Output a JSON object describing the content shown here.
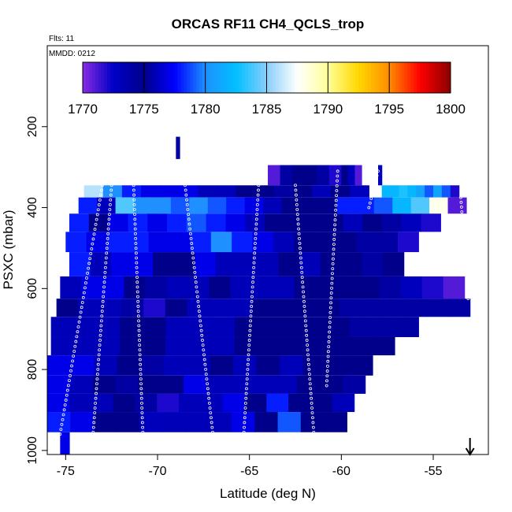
{
  "chart_data": {
    "type": "heatmap",
    "title": "ORCAS RF11 CH4_QCLS_trop",
    "flights_note": "Flts: 11",
    "date_note": "MMDD: 0212",
    "xlabel": "Latitude (deg N)",
    "ylabel": "PSXC (mbar)",
    "xlim": [
      -76,
      -52
    ],
    "ylim": [
      1010,
      0
    ],
    "x_ticks": [
      -75,
      -70,
      -65,
      -60,
      -55
    ],
    "x_tick_labels": [
      "-75",
      "-70",
      "-65",
      "-60",
      "-55"
    ],
    "y_ticks": [
      200,
      400,
      600,
      800,
      1000
    ],
    "y_tick_labels": [
      "200",
      "400",
      "600",
      "800",
      "1000"
    ],
    "colorbar": {
      "min": 1770,
      "max": 1800,
      "ticks": [
        1770,
        1775,
        1780,
        1785,
        1790,
        1795,
        1800
      ],
      "tick_labels": [
        "1770",
        "1775",
        "1780",
        "1785",
        "1790",
        "1795",
        "1800"
      ],
      "colors": [
        "#8a2be2",
        "#0000c8",
        "#00008b",
        "#0000ff",
        "#1e90ff",
        "#00bfff",
        "#87cefa",
        "#ffffff",
        "#ffff99",
        "#ffd700",
        "#ff8c00",
        "#ff0000",
        "#8b0000"
      ]
    },
    "arrow_latitude": -53,
    "bands": [
      {
        "p_top": 295,
        "p_bot": 345,
        "x0": -64.0,
        "x1": -60.0,
        "values": [
          1771,
          1774,
          1775,
          1775,
          1774,
          1772
        ]
      },
      {
        "p_top": 295,
        "p_bot": 345,
        "x0": -60.0,
        "x1": -58.9,
        "values": [
          1775,
          1773,
          1771
        ]
      },
      {
        "p_top": 295,
        "p_bot": 345,
        "x0": -58.0,
        "x1": -57.8,
        "values": [
          1773
        ]
      },
      {
        "p_top": 345,
        "p_bot": 375,
        "x0": -74.0,
        "x1": -58.5,
        "values": [
          1786,
          1780,
          1778,
          1777,
          1777,
          1777,
          1776,
          1776,
          1775,
          1775,
          1774,
          1775,
          1776,
          1775,
          1773
        ]
      },
      {
        "p_top": 345,
        "p_bot": 375,
        "x0": -57.8,
        "x1": -53.6,
        "values": [
          1782,
          1782,
          1783,
          1782,
          1781,
          1779,
          1781,
          1779,
          1772
        ]
      },
      {
        "p_top": 375,
        "p_bot": 415,
        "x0": -74.3,
        "x1": -53.2,
        "values": [
          1778,
          1773,
          1784,
          1780,
          1780,
          1779,
          1780,
          1779,
          1778,
          1777,
          1776,
          1775,
          1775,
          1775,
          1778,
          1778,
          1779,
          1782,
          1784,
          1788,
          1771
        ]
      },
      {
        "p_top": 415,
        "p_bot": 460,
        "x0": -74.8,
        "x1": -54.6,
        "values": [
          1778,
          1775,
          1777,
          1778,
          1777,
          1778,
          1779,
          1778,
          1777,
          1776,
          1775,
          1775,
          1775,
          1775,
          1776,
          1775,
          1774,
          1773,
          1772
        ]
      },
      {
        "p_top": 460,
        "p_bot": 510,
        "x0": -75.0,
        "x1": -55.8,
        "values": [
          1778,
          1777,
          1778,
          1778,
          1777,
          1777,
          1778,
          1780,
          1778,
          1777,
          1776,
          1775,
          1775,
          1775,
          1774,
          1774,
          1772
        ]
      },
      {
        "p_top": 510,
        "p_bot": 570,
        "x0": -74.8,
        "x1": -56.6,
        "values": [
          1778,
          1776,
          1777,
          1777,
          1775,
          1775,
          1777,
          1776,
          1776,
          1776,
          1775,
          1776,
          1775,
          1775,
          1774,
          1775
        ]
      },
      {
        "p_top": 570,
        "p_bot": 625,
        "x0": -75.3,
        "x1": -53.3,
        "values": [
          1776,
          1777,
          1777,
          1775,
          1774,
          1776,
          1776,
          1775,
          1776,
          1776,
          1776,
          1775,
          1775,
          1775,
          1775,
          1774,
          1773,
          1772,
          1771
        ]
      },
      {
        "p_top": 625,
        "p_bot": 670,
        "x0": -75.5,
        "x1": -53.0,
        "values": [
          1775,
          1776,
          1776,
          1774,
          1772,
          1775,
          1776,
          1776,
          1776,
          1775,
          1775,
          1775,
          1775,
          1774,
          1774,
          1774,
          1774,
          1774,
          1774
        ]
      },
      {
        "p_top": 670,
        "p_bot": 720,
        "x0": -75.8,
        "x1": -55.8,
        "values": [
          1776,
          1776,
          1776,
          1775,
          1775,
          1776,
          1776,
          1776,
          1775,
          1775,
          1775,
          1775,
          1775,
          1774,
          1774,
          1774
        ]
      },
      {
        "p_top": 720,
        "p_bot": 765,
        "x0": -75.8,
        "x1": -57.1,
        "values": [
          1776,
          1776,
          1776,
          1775,
          1775,
          1776,
          1776,
          1776,
          1775,
          1775,
          1775,
          1775,
          1775,
          1775,
          1775
        ]
      },
      {
        "p_top": 765,
        "p_bot": 815,
        "x0": -76.0,
        "x1": -58.3,
        "values": [
          1777,
          1777,
          1776,
          1775,
          1774,
          1776,
          1776,
          1775,
          1776,
          1775,
          1776,
          1775,
          1775,
          1775
        ]
      },
      {
        "p_top": 815,
        "p_bot": 860,
        "x0": -76.0,
        "x1": -58.7,
        "values": [
          1777,
          1776,
          1775,
          1774,
          1775,
          1775,
          1777,
          1776,
          1776,
          1776,
          1776,
          1775,
          1775,
          1774
        ]
      },
      {
        "p_top": 860,
        "p_bot": 905,
        "x0": -76.0,
        "x1": -59.3,
        "values": [
          1777,
          1776,
          1776,
          1775,
          1774,
          1772,
          1776,
          1776,
          1777,
          1775,
          1778,
          1775,
          1775,
          1776
        ]
      },
      {
        "p_top": 905,
        "p_bot": 955,
        "x0": -76.0,
        "x1": -59.7,
        "values": [
          1778,
          1777,
          1775,
          1775,
          1773,
          1776,
          1776,
          1776,
          1777,
          1775,
          1779,
          1775,
          1775
        ]
      },
      {
        "p_top": 955,
        "p_bot": 1010,
        "x0": -75.3,
        "x1": -74.8,
        "values": [
          1777
        ]
      },
      {
        "p_top": 225,
        "p_bot": 280,
        "x0": -69.0,
        "x1": -68.8,
        "values": [
          1774
        ]
      }
    ],
    "profiles": [
      {
        "lat_top": -73.0,
        "p_top": 345,
        "lat_bot": -75.3,
        "p_bot": 960
      },
      {
        "lat_top": -72.5,
        "p_top": 345,
        "lat_bot": -73.5,
        "p_bot": 955
      },
      {
        "lat_top": -71.3,
        "p_top": 345,
        "lat_bot": -70.8,
        "p_bot": 955
      },
      {
        "lat_top": -68.5,
        "p_top": 345,
        "lat_bot": -67.0,
        "p_bot": 955
      },
      {
        "lat_top": -64.5,
        "p_top": 345,
        "lat_bot": -65.3,
        "p_bot": 955
      },
      {
        "lat_top": -62.5,
        "p_top": 345,
        "lat_bot": -61.5,
        "p_bot": 955
      },
      {
        "lat_top": -60.2,
        "p_top": 310,
        "lat_bot": -60.8,
        "p_bot": 840
      },
      {
        "lat_top": -58.0,
        "p_top": 310,
        "lat_bot": -58.5,
        "p_bot": 400
      },
      {
        "lat_top": -53.5,
        "p_top": 375,
        "lat_bot": -53.1,
        "p_bot": 625
      }
    ]
  }
}
